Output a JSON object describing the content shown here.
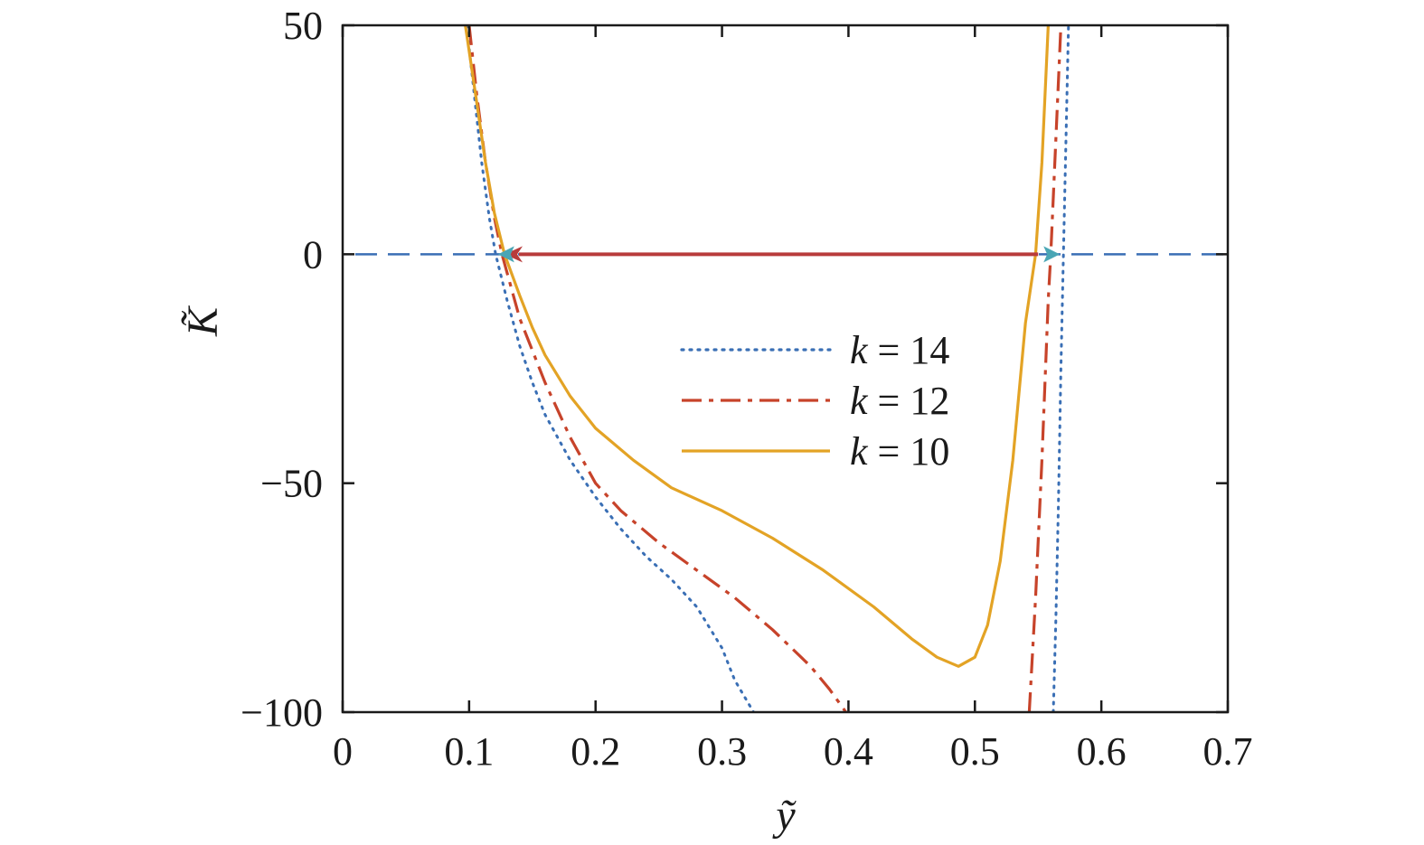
{
  "chart_data": {
    "type": "line",
    "title": "",
    "xlabel": "ỹ",
    "ylabel": "K̃",
    "xlim": [
      0,
      0.7
    ],
    "ylim": [
      -100,
      50
    ],
    "xticks": [
      0,
      0.1,
      0.2,
      0.3,
      0.4,
      0.5,
      0.6,
      0.7
    ],
    "xtick_labels": [
      "0",
      "0.1",
      "0.2",
      "0.3",
      "0.4",
      "0.5",
      "0.6",
      "0.7"
    ],
    "yticks": [
      50,
      0,
      -50,
      -100
    ],
    "ytick_labels": [
      "50",
      "0",
      "−50",
      "−100"
    ],
    "grid": false,
    "legend_position": "center",
    "series": [
      {
        "name": "k = 14",
        "color": "#3a6fb5",
        "style": "dotted",
        "segments": [
          [
            [
              0.098,
              50
            ],
            [
              0.104,
              35
            ],
            [
              0.11,
              20
            ],
            [
              0.116,
              8
            ],
            [
              0.121,
              0
            ],
            [
              0.13,
              -10
            ],
            [
              0.14,
              -20
            ],
            [
              0.15,
              -28
            ],
            [
              0.16,
              -35
            ],
            [
              0.18,
              -45
            ],
            [
              0.2,
              -53
            ],
            [
              0.22,
              -60
            ],
            [
              0.24,
              -66
            ],
            [
              0.26,
              -71
            ],
            [
              0.28,
              -77
            ],
            [
              0.3,
              -86
            ],
            [
              0.31,
              -93
            ],
            [
              0.325,
              -100
            ]
          ],
          [
            [
              0.562,
              -100
            ],
            [
              0.564,
              -80
            ],
            [
              0.566,
              -55
            ],
            [
              0.568,
              -25
            ],
            [
              0.57,
              0
            ],
            [
              0.572,
              25
            ],
            [
              0.574,
              50
            ]
          ]
        ]
      },
      {
        "name": "k = 12",
        "color": "#c7432a",
        "style": "dashdot",
        "segments": [
          [
            [
              0.1,
              50
            ],
            [
              0.106,
              35
            ],
            [
              0.113,
              20
            ],
            [
              0.12,
              8
            ],
            [
              0.126,
              0
            ],
            [
              0.14,
              -14
            ],
            [
              0.15,
              -21
            ],
            [
              0.16,
              -28
            ],
            [
              0.18,
              -40
            ],
            [
              0.2,
              -50
            ],
            [
              0.22,
              -56
            ],
            [
              0.25,
              -63
            ],
            [
              0.28,
              -69
            ],
            [
              0.31,
              -75
            ],
            [
              0.34,
              -82
            ],
            [
              0.37,
              -90
            ],
            [
              0.385,
              -95
            ],
            [
              0.398,
              -100
            ]
          ],
          [
            [
              0.543,
              -100
            ],
            [
              0.548,
              -75
            ],
            [
              0.553,
              -45
            ],
            [
              0.558,
              -10
            ],
            [
              0.56,
              0
            ],
            [
              0.564,
              25
            ],
            [
              0.568,
              50
            ]
          ]
        ]
      },
      {
        "name": "k = 10",
        "color": "#e3a325",
        "style": "solid",
        "segments": [
          [
            [
              0.097,
              50
            ],
            [
              0.105,
              35
            ],
            [
              0.113,
              20
            ],
            [
              0.12,
              9
            ],
            [
              0.128,
              0
            ],
            [
              0.14,
              -9
            ],
            [
              0.15,
              -16
            ],
            [
              0.16,
              -22
            ],
            [
              0.18,
              -31
            ],
            [
              0.2,
              -38
            ],
            [
              0.23,
              -45
            ],
            [
              0.26,
              -51
            ],
            [
              0.3,
              -56
            ],
            [
              0.34,
              -62
            ],
            [
              0.38,
              -69
            ],
            [
              0.42,
              -77
            ],
            [
              0.45,
              -84
            ],
            [
              0.47,
              -88
            ],
            [
              0.487,
              -90
            ],
            [
              0.5,
              -88
            ],
            [
              0.51,
              -81
            ],
            [
              0.52,
              -67
            ],
            [
              0.53,
              -45
            ],
            [
              0.54,
              -15
            ],
            [
              0.548,
              0
            ],
            [
              0.553,
              20
            ],
            [
              0.558,
              50
            ]
          ]
        ]
      }
    ],
    "reference_line": {
      "y": 0,
      "color": "#3a6fb5",
      "style": "dashed",
      "x_range": [
        0.01,
        0.7
      ]
    },
    "annotations": [
      {
        "type": "arrow",
        "from": [
          0.55,
          0
        ],
        "to": [
          0.128,
          0
        ],
        "color": "#b83b3b"
      },
      {
        "type": "marker",
        "x": 0.13,
        "y": 0,
        "color": "#4aa6b5",
        "direction": "left"
      },
      {
        "type": "marker",
        "x": 0.56,
        "y": 0,
        "color": "#4aa6b5",
        "direction": "right"
      }
    ]
  }
}
